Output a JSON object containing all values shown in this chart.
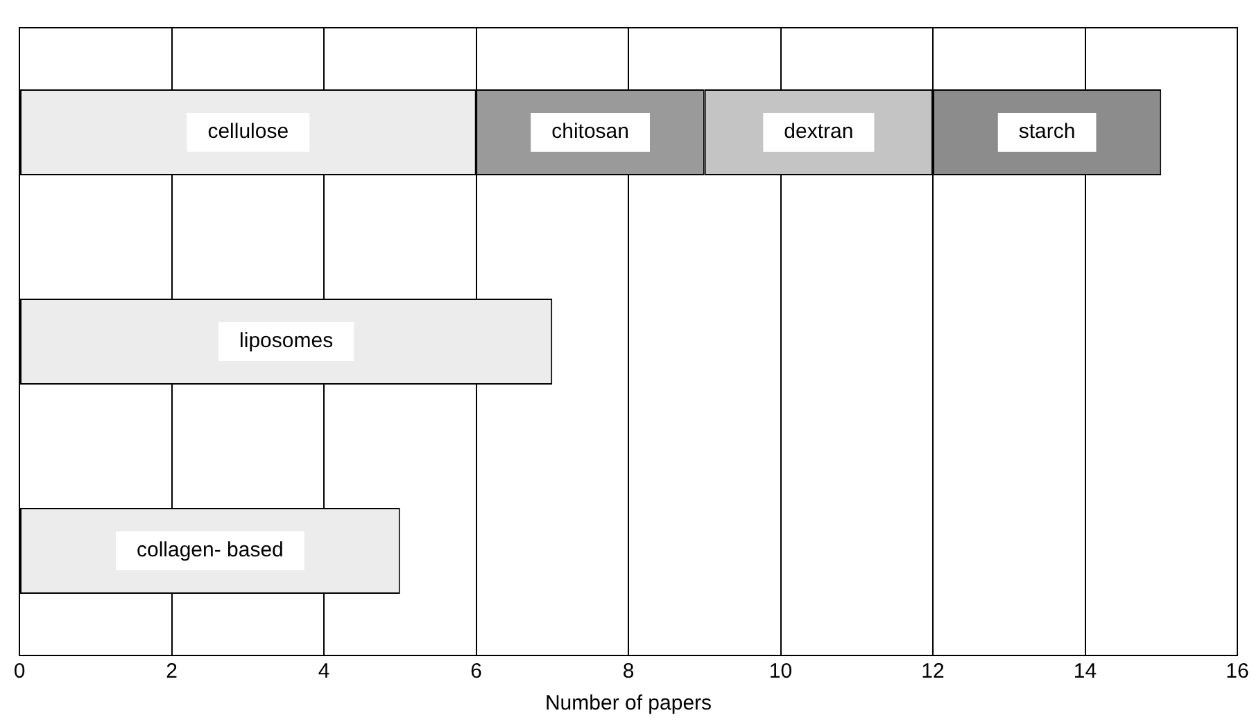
{
  "chart_data": {
    "type": "bar",
    "orientation": "horizontal",
    "stacked": true,
    "xlabel": "Number of papers",
    "categories": [
      null,
      null,
      null
    ],
    "series": [
      {
        "name": "cellulose",
        "color": "#ececec",
        "values": [
          6,
          null,
          null
        ]
      },
      {
        "name": "chitosan",
        "color": "#9a9a9a",
        "values": [
          3,
          null,
          null
        ]
      },
      {
        "name": "dextran",
        "color": "#c4c4c4",
        "values": [
          3,
          null,
          null
        ]
      },
      {
        "name": "starch",
        "color": "#8c8c8c",
        "values": [
          3,
          null,
          null
        ]
      },
      {
        "name": "liposomes",
        "color": "#ececec",
        "values": [
          null,
          7,
          null
        ]
      },
      {
        "name": "collagen- based",
        "color": "#ececec",
        "values": [
          null,
          null,
          5
        ]
      }
    ],
    "xlim": [
      0,
      16
    ],
    "xticks": [
      0,
      2,
      4,
      6,
      8,
      10,
      12,
      14,
      16
    ],
    "grid": "x",
    "legend": false,
    "tick_labels": "x"
  }
}
